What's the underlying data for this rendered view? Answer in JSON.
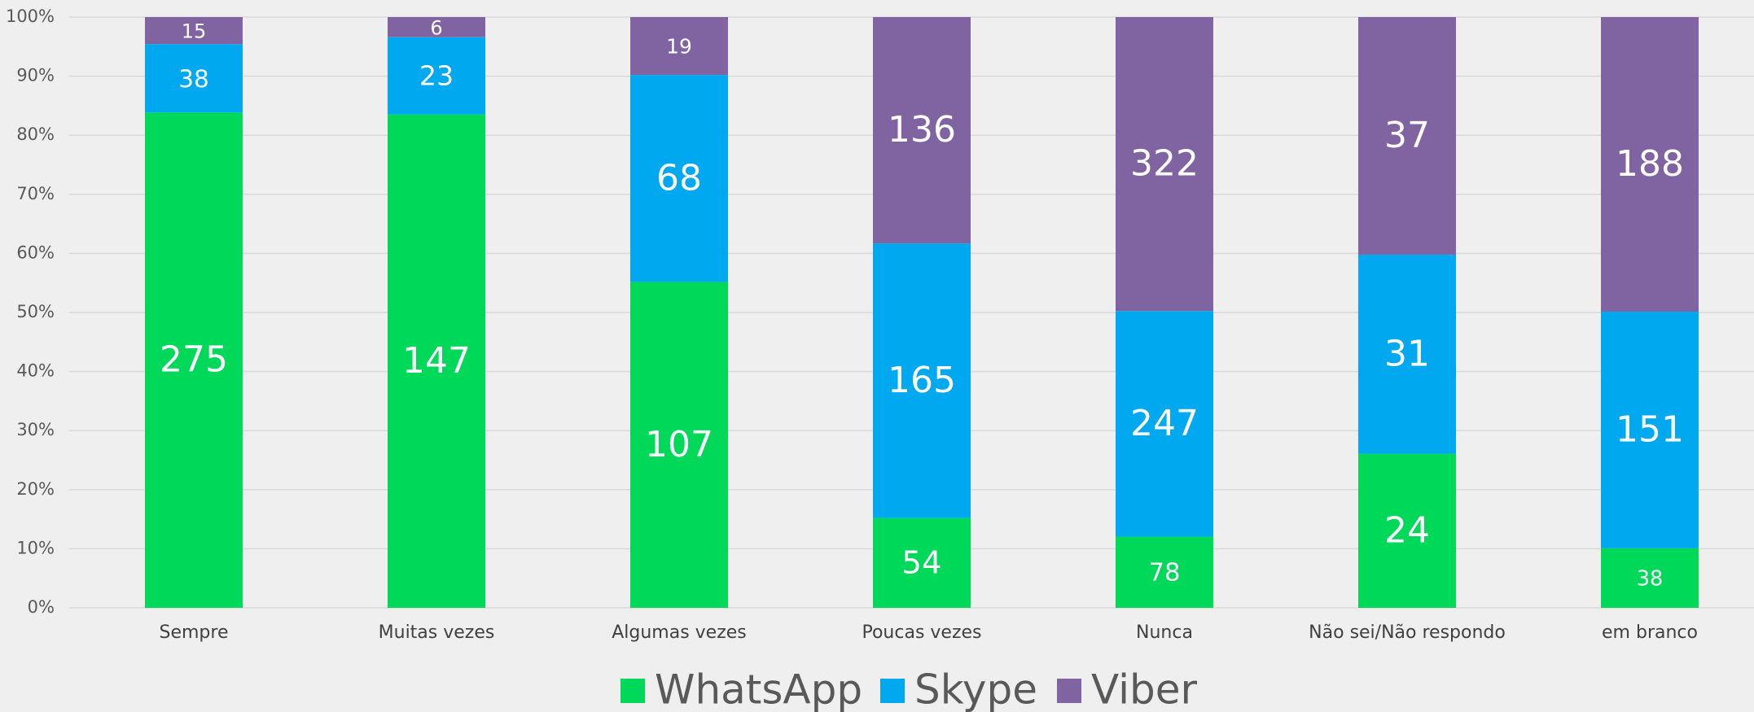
{
  "chart_data": {
    "type": "bar",
    "stacking": "percent",
    "categories": [
      "Sempre",
      "Muitas vezes",
      "Algumas vezes",
      "Poucas vezes",
      "Nunca",
      "Não sei/Não respondo",
      "em branco"
    ],
    "series": [
      {
        "name": "WhatsApp",
        "color": "#00d85a",
        "values": [
          275,
          147,
          107,
          54,
          78,
          24,
          38
        ]
      },
      {
        "name": "Skype",
        "color": "#00a8f0",
        "values": [
          38,
          23,
          68,
          165,
          247,
          31,
          151
        ]
      },
      {
        "name": "Viber",
        "color": "#8064a2",
        "values": [
          15,
          6,
          19,
          136,
          322,
          37,
          188
        ]
      }
    ],
    "ylim": [
      0,
      100
    ],
    "yticks": [
      {
        "value": 0,
        "label": "0%"
      },
      {
        "value": 10,
        "label": "10%"
      },
      {
        "value": 20,
        "label": "20%"
      },
      {
        "value": 30,
        "label": "30%"
      },
      {
        "value": 40,
        "label": "40%"
      },
      {
        "value": 50,
        "label": "50%"
      },
      {
        "value": 60,
        "label": "60%"
      },
      {
        "value": 70,
        "label": "70%"
      },
      {
        "value": 80,
        "label": "80%"
      },
      {
        "value": 90,
        "label": "90%"
      },
      {
        "value": 100,
        "label": "100%"
      }
    ],
    "grid": true,
    "legend": "bottom"
  }
}
